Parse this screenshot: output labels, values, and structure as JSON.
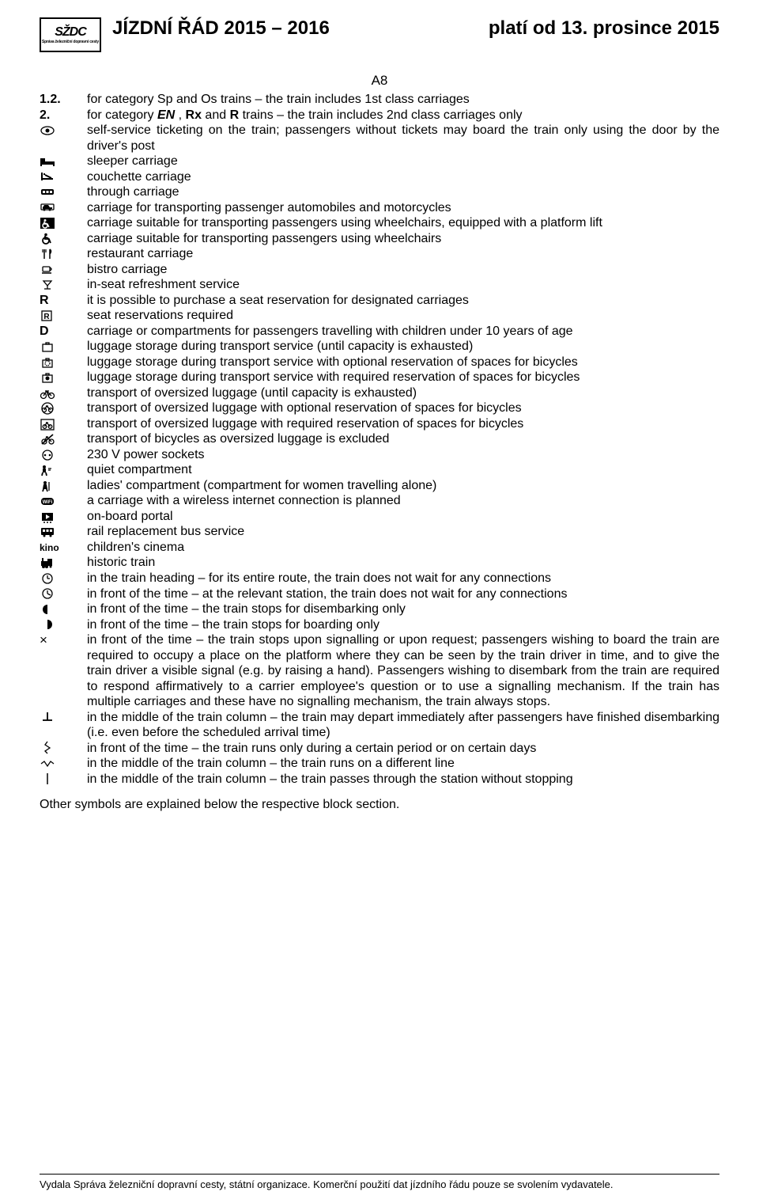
{
  "header": {
    "logo_main": "SŽDC",
    "logo_sub": "Správa železniční dopravní cesty",
    "title": "JÍZDNÍ  ŘÁD  2015 – 2016",
    "right": "platí od 13. prosince 2015"
  },
  "section_label": "A8",
  "items": [
    {
      "sym": "1.2.",
      "bold": true,
      "text": "for category Sp and Os trains – the train includes 1st class carriages"
    },
    {
      "sym": "2.",
      "bold": true,
      "text": "for category <b><i>EN</i></b> , <b>Rx</b> and <b>R</b> trains – the train includes 2nd class carriages only"
    },
    {
      "sym": "eye",
      "text": "self-service ticketing on the train; passengers without tickets may board the train only using the door by the driver's post"
    },
    {
      "sym": "bed",
      "text": "sleeper carriage"
    },
    {
      "sym": "couchette",
      "text": "couchette carriage"
    },
    {
      "sym": "through",
      "text": "through carriage"
    },
    {
      "sym": "car",
      "text": "carriage for transporting passenger automobiles and motorcycles"
    },
    {
      "sym": "wheel-lift",
      "text": "carriage suitable for transporting passengers using wheelchairs, equipped with a platform lift"
    },
    {
      "sym": "wheel",
      "text": "carriage suitable for transporting passengers using wheelchairs"
    },
    {
      "sym": "fork",
      "text": "restaurant carriage"
    },
    {
      "sym": "cup",
      "text": "bistro carriage"
    },
    {
      "sym": "glass",
      "text": "in-seat refreshment service"
    },
    {
      "sym": "R",
      "bold": true,
      "text": "it is possible to purchase a seat reservation for designated carriages"
    },
    {
      "sym": "Rbox",
      "text": "seat reservations required"
    },
    {
      "sym": "D",
      "bold": true,
      "text": "carriage or compartments for passengers travelling with children under 10 years of age"
    },
    {
      "sym": "lug",
      "text": "luggage storage during transport service (until capacity is exhausted)"
    },
    {
      "sym": "lug-opt",
      "text": "luggage storage during transport service with optional reservation of spaces for bicycles"
    },
    {
      "sym": "lug-req",
      "text": "luggage storage during transport service with required reservation of spaces for bicycles"
    },
    {
      "sym": "bike",
      "text": "transport of oversized luggage (until capacity is exhausted)"
    },
    {
      "sym": "bike-opt",
      "text": "transport of oversized luggage with optional reservation of spaces for bicycles"
    },
    {
      "sym": "bike-req",
      "text": "transport of oversized luggage with required reservation of spaces for bicycles"
    },
    {
      "sym": "bike-x",
      "text": "transport of bicycles as oversized luggage is excluded"
    },
    {
      "sym": "socket",
      "text": "230 V power sockets"
    },
    {
      "sym": "quiet",
      "text": "quiet compartment"
    },
    {
      "sym": "ladies",
      "text": "ladies' compartment (compartment for women travelling alone)"
    },
    {
      "sym": "wifi",
      "text": "a carriage with a wireless internet connection is planned"
    },
    {
      "sym": "portal",
      "text": "on-board portal"
    },
    {
      "sym": "bus",
      "text": "rail replacement bus service"
    },
    {
      "sym": "kino",
      "bold": true,
      "small": true,
      "text": "children's cinema"
    },
    {
      "sym": "historic",
      "text": "historic train"
    },
    {
      "sym": "clock-head",
      "text": "in the train heading – for its entire route, the train does not wait for any connections"
    },
    {
      "sym": "clock-time",
      "text": "in front of the time – at the relevant station, the train does not wait for any connections"
    },
    {
      "sym": "left-half",
      "text": "in front of the time – the train stops for disembarking only"
    },
    {
      "sym": "right-half",
      "text": "in front of the time – the train stops for boarding only"
    },
    {
      "sym": "×",
      "text": "in front of the time – the train stops upon signalling or upon request; passengers wishing to board the train are required to occupy a place on the platform where they can be seen by the train driver in time, and to give the train driver a visible signal (e.g. by raising a hand). Passengers wishing to disembark from the train are required to respond affirmatively to a carrier employee's question or to use a signalling mechanism. If the train has multiple carriages and these have no signalling mechanism, the train always stops."
    },
    {
      "sym": "perp",
      "text": "in the middle of the train column – the train may depart immediately after passengers have finished disembarking (i.e. even before the scheduled arrival time)"
    },
    {
      "sym": "zigzag-v",
      "text": "in front of the time – the train runs only during a certain period or on certain days"
    },
    {
      "sym": "zigzag-h",
      "text": "in the middle of the train column – the train runs on a different line"
    },
    {
      "sym": "vbar",
      "text": "in the middle of the train column – the train passes through the station without stopping"
    }
  ],
  "closing_note": "Other symbols are explained below the respective block section.",
  "footer": "Vydala Správa železniční dopravní cesty, státní organizace. Komerční použití dat jízdního řádu pouze se svolením vydavatele."
}
